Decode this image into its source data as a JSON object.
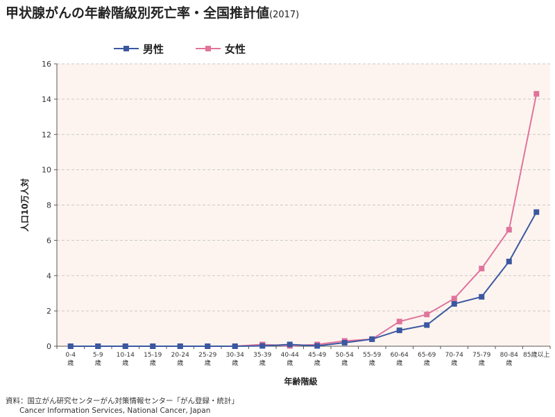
{
  "title": {
    "main": "甲状腺がんの年齢階級別死亡率・全国推計値",
    "year": "(2017)"
  },
  "source": {
    "line1": "資料：国立がん研究センターがん対策情報センター「がん登録・統計」",
    "line2": "Cancer Information Services, National Cancer, Japan"
  },
  "chart_data": {
    "type": "line",
    "ylabel": "人口10万人対",
    "xlabel": "年齢階級",
    "ylim": [
      0,
      16
    ],
    "yticks": [
      0,
      2,
      4,
      6,
      8,
      10,
      12,
      14,
      16
    ],
    "grid": "horizontal dashed",
    "legend_position": "top",
    "plot_background": "#fdf4ef",
    "categories": [
      [
        "0-4",
        "歳"
      ],
      [
        "5-9",
        "歳"
      ],
      [
        "10-14",
        "歳"
      ],
      [
        "15-19",
        "歳"
      ],
      [
        "20-24",
        "歳"
      ],
      [
        "25-29",
        "歳"
      ],
      [
        "30-34",
        "歳"
      ],
      [
        "35-39",
        "歳"
      ],
      [
        "40-44",
        "歳"
      ],
      [
        "45-49",
        "歳"
      ],
      [
        "50-54",
        "歳"
      ],
      [
        "55-59",
        "歳"
      ],
      [
        "60-64",
        "歳"
      ],
      [
        "65-69",
        "歳"
      ],
      [
        "70-74",
        "歳"
      ],
      [
        "75-79",
        "歳"
      ],
      [
        "80-84",
        "歳"
      ],
      [
        "85歳以上",
        ""
      ]
    ],
    "series": [
      {
        "name": "男性",
        "color": "#3a57a0",
        "marker": "square",
        "values": [
          0,
          0,
          0,
          0,
          0,
          0,
          0,
          0.02,
          0.1,
          0.02,
          0.2,
          0.4,
          0.9,
          1.2,
          2.4,
          2.8,
          4.8,
          7.6
        ]
      },
      {
        "name": "女性",
        "color": "#e0739c",
        "marker": "square",
        "values": [
          0,
          0,
          0,
          0,
          0,
          0,
          0,
          0.1,
          0.02,
          0.1,
          0.3,
          0.4,
          1.4,
          1.8,
          2.7,
          4.4,
          6.6,
          14.3
        ]
      }
    ]
  }
}
